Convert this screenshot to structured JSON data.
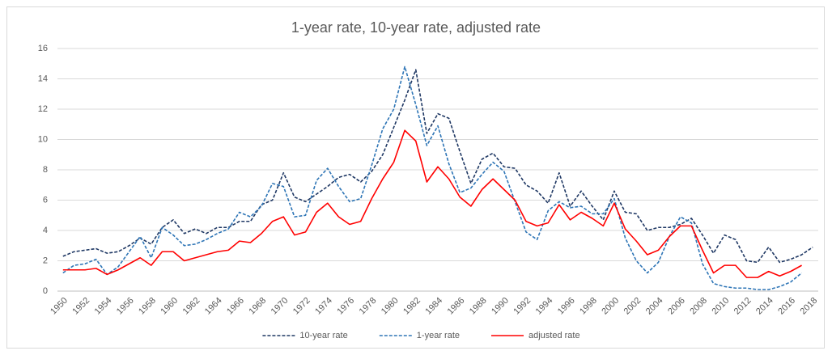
{
  "chart_data": {
    "type": "line",
    "title": "1-year rate, 10-year rate, adjusted rate",
    "categories": [
      "1950",
      null,
      "1952",
      null,
      "1954",
      null,
      "1956",
      null,
      "1958",
      null,
      "1960",
      null,
      "1962",
      null,
      "1964",
      null,
      "1966",
      null,
      "1968",
      null,
      "1970",
      null,
      "1972",
      null,
      "1974",
      null,
      "1976",
      null,
      "1978",
      null,
      "1980",
      null,
      "1982",
      null,
      "1984",
      null,
      "1986",
      null,
      "1988",
      null,
      "1990",
      null,
      "1992",
      null,
      "1994",
      null,
      "1996",
      null,
      "1998",
      null,
      "2000",
      null,
      "2002",
      null,
      "2004",
      null,
      "2006",
      null,
      "2008",
      null,
      "2010",
      null,
      "2012",
      null,
      "2014",
      null,
      "2016",
      null,
      "2018"
    ],
    "series": [
      {
        "name": "10-year rate",
        "color": "#1f3864",
        "dashed": true,
        "values": [
          2.3,
          2.6,
          2.7,
          2.8,
          2.5,
          2.6,
          3.0,
          3.5,
          3.1,
          4.2,
          4.7,
          3.8,
          4.1,
          3.8,
          4.2,
          4.2,
          4.6,
          4.6,
          5.7,
          6.0,
          7.8,
          6.2,
          5.9,
          6.4,
          6.9,
          7.5,
          7.7,
          7.2,
          7.9,
          9.0,
          10.8,
          12.6,
          14.6,
          10.4,
          11.7,
          11.4,
          9.2,
          7.1,
          8.7,
          9.1,
          8.2,
          8.1,
          7.0,
          6.6,
          5.8,
          7.8,
          5.6,
          6.6,
          5.6,
          4.7,
          6.6,
          5.2,
          5.1,
          4.0,
          4.2,
          4.2,
          4.4,
          4.8,
          3.7,
          2.5,
          3.7,
          3.4,
          2.0,
          1.9,
          2.9,
          1.9,
          2.1,
          2.4,
          2.9
        ]
      },
      {
        "name": "1-year rate",
        "color": "#2e75b6",
        "dashed": true,
        "values": [
          1.2,
          1.7,
          1.8,
          2.1,
          1.1,
          1.6,
          2.6,
          3.6,
          2.2,
          4.2,
          3.7,
          3.0,
          3.1,
          3.4,
          3.8,
          4.1,
          5.2,
          4.9,
          5.6,
          7.1,
          6.9,
          4.9,
          5.0,
          7.3,
          8.1,
          6.9,
          5.9,
          6.1,
          8.3,
          10.7,
          12.0,
          14.8,
          12.3,
          9.6,
          10.9,
          8.4,
          6.5,
          6.8,
          7.7,
          8.5,
          7.9,
          5.9,
          3.9,
          3.4,
          5.3,
          5.9,
          5.5,
          5.6,
          5.1,
          5.1,
          6.1,
          3.5,
          2.0,
          1.2,
          1.9,
          3.6,
          4.9,
          4.5,
          1.8,
          0.5,
          0.3,
          0.2,
          0.2,
          0.1,
          0.1,
          0.3,
          0.6,
          1.2,
          null
        ]
      },
      {
        "name": "adjusted rate",
        "color": "#ff0000",
        "dashed": false,
        "values": [
          1.4,
          1.4,
          1.4,
          1.5,
          1.1,
          1.4,
          1.8,
          2.2,
          1.7,
          2.6,
          2.6,
          2.0,
          2.2,
          2.4,
          2.6,
          2.7,
          3.3,
          3.2,
          3.8,
          4.6,
          4.9,
          3.7,
          3.9,
          5.2,
          5.8,
          4.9,
          4.4,
          4.6,
          6.1,
          7.4,
          8.5,
          10.6,
          9.9,
          7.2,
          8.2,
          7.4,
          6.2,
          5.6,
          6.7,
          7.4,
          6.7,
          6.0,
          4.6,
          4.3,
          4.5,
          5.7,
          4.7,
          5.2,
          4.8,
          4.3,
          5.8,
          4.1,
          3.3,
          2.4,
          2.7,
          3.6,
          4.3,
          4.3,
          2.7,
          1.2,
          1.7,
          1.7,
          0.9,
          0.9,
          1.3,
          1.0,
          1.3,
          1.7,
          null
        ]
      }
    ],
    "ylim": [
      0,
      16
    ],
    "yticks": [
      0,
      2,
      4,
      6,
      8,
      10,
      12,
      14,
      16
    ],
    "grid": true,
    "legend": "bottom"
  }
}
